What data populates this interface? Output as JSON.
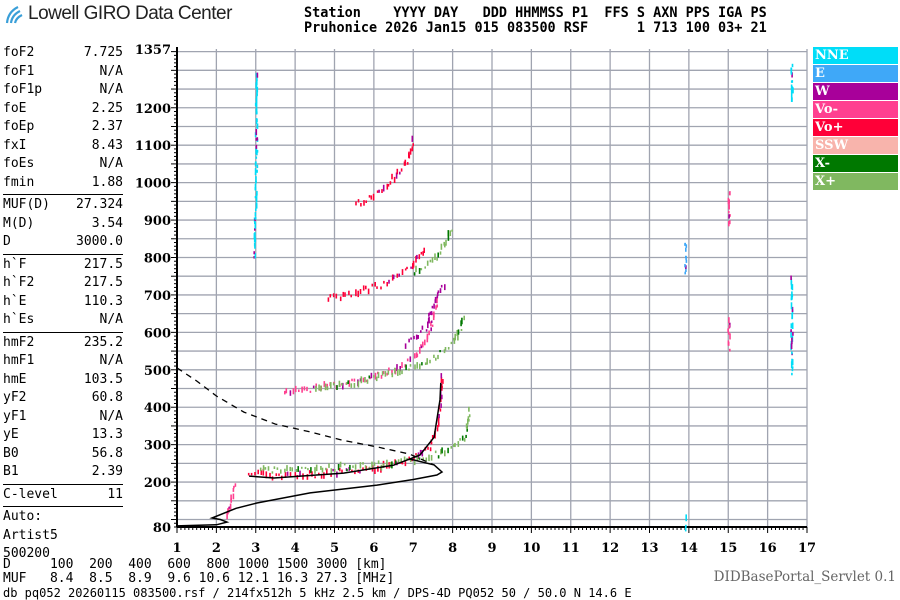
{
  "header": {
    "logo_text": "Lowell GIRO Data Center",
    "line1": "Station    YYYY DAY   DDD HHMMSS P1  FFS S AXN PPS IGA PS",
    "line2": "Pruhonice 2026 Jan15 015 083500 RSF      1 713 100 03+ 21"
  },
  "params": [
    [
      {
        "k": "foF2",
        "v": "7.725"
      },
      {
        "k": "foF1",
        "v": "N/A"
      },
      {
        "k": "foF1p",
        "v": "N/A"
      },
      {
        "k": "foE",
        "v": "2.25"
      },
      {
        "k": "foEp",
        "v": "2.37"
      },
      {
        "k": "fxI",
        "v": "8.43"
      },
      {
        "k": "foEs",
        "v": "N/A"
      },
      {
        "k": "fmin",
        "v": "1.88"
      }
    ],
    [
      {
        "k": "MUF(D)",
        "v": "27.324"
      },
      {
        "k": "M(D)",
        "v": "3.54"
      },
      {
        "k": "D",
        "v": "3000.0"
      }
    ],
    [
      {
        "k": "h`F",
        "v": "217.5"
      },
      {
        "k": "h`F2",
        "v": "217.5"
      },
      {
        "k": "h`E",
        "v": "110.3"
      },
      {
        "k": "h`Es",
        "v": "N/A"
      }
    ],
    [
      {
        "k": "hmF2",
        "v": "235.2"
      },
      {
        "k": "hmF1",
        "v": "N/A"
      },
      {
        "k": "hmE",
        "v": "103.5"
      },
      {
        "k": "yF2",
        "v": "60.8"
      },
      {
        "k": "yF1",
        "v": "N/A"
      },
      {
        "k": "yE",
        "v": "13.3"
      },
      {
        "k": "B0",
        "v": "56.8"
      },
      {
        "k": "B1",
        "v": "2.39"
      }
    ],
    [
      {
        "k": "C-level",
        "v": "11"
      }
    ]
  ],
  "autoscaling": [
    "Auto:",
    "Artist5",
    "500200"
  ],
  "footer": {
    "d_row": "D     100  200  400  600  800 1000 1500 3000 [km]",
    "muf_row": "MUF   8.4  8.5  8.9  9.6 10.6 12.1 16.3 27.3 [MHz]",
    "info": "db pq052 20260115 083500.rsf / 214fx512h 5 kHz 2.5 km / DPS-4D PQ052 50 / 50.0 N 14.6 E",
    "servlet": "DIDBasePortal_Servlet 0.1"
  },
  "legend": [
    {
      "label": "NNE",
      "color": "#00ddf8"
    },
    {
      "label": "E",
      "color": "#3fa8f8"
    },
    {
      "label": "W",
      "color": "#a8009a"
    },
    {
      "label": "Vo-",
      "color": "#ff4090"
    },
    {
      "label": "Vo+",
      "color": "#ff0038"
    },
    {
      "label": "SSW",
      "color": "#f8b4ac"
    },
    {
      "label": "X-",
      "color": "#007800"
    },
    {
      "label": "X+",
      "color": "#80b860"
    }
  ],
  "chart_data": {
    "type": "scatter",
    "xlabel": "",
    "ylabel": "",
    "xlim": [
      1,
      17
    ],
    "ylim": [
      80,
      1357
    ],
    "x_ticks": [
      1,
      2,
      3,
      4,
      5,
      6,
      7,
      8,
      9,
      10,
      11,
      12,
      13,
      14,
      15,
      16,
      17
    ],
    "y_ticks": [
      80,
      200,
      300,
      400,
      500,
      600,
      700,
      800,
      900,
      1000,
      1100,
      1200,
      1357
    ],
    "grid": true,
    "legend_placement": "right",
    "traces": [
      {
        "pol": "Vo+",
        "points": [
          [
            2.8,
            222
          ],
          [
            3.5,
            217
          ],
          [
            4.5,
            220
          ],
          [
            5.5,
            230
          ],
          [
            6.3,
            242
          ],
          [
            7.0,
            262
          ],
          [
            7.4,
            295
          ],
          [
            7.6,
            350
          ],
          [
            7.7,
            430
          ],
          [
            7.72,
            490
          ]
        ]
      },
      {
        "pol": "X+",
        "points": [
          [
            3.1,
            232
          ],
          [
            4.0,
            234
          ],
          [
            5.0,
            238
          ],
          [
            6.0,
            244
          ],
          [
            7.0,
            258
          ],
          [
            7.6,
            275
          ],
          [
            8.0,
            290
          ],
          [
            8.3,
            320
          ],
          [
            8.43,
            400
          ]
        ]
      },
      {
        "pol": "Vo-",
        "points": [
          [
            3.7,
            440
          ],
          [
            4.5,
            450
          ],
          [
            5.5,
            470
          ],
          [
            6.3,
            490
          ],
          [
            7.0,
            530
          ],
          [
            7.4,
            600
          ],
          [
            7.6,
            690
          ]
        ]
      },
      {
        "pol": "X+",
        "points": [
          [
            4.5,
            445
          ],
          [
            5.5,
            465
          ],
          [
            6.5,
            490
          ],
          [
            7.5,
            530
          ],
          [
            8.0,
            570
          ],
          [
            8.3,
            640
          ]
        ]
      },
      {
        "pol": "W",
        "points": [
          [
            6.8,
            570
          ],
          [
            7.3,
            610
          ],
          [
            7.6,
            700
          ],
          [
            7.8,
            730
          ]
        ]
      },
      {
        "pol": "Vo+",
        "points": [
          [
            4.8,
            690
          ],
          [
            5.5,
            705
          ],
          [
            6.3,
            730
          ],
          [
            6.9,
            770
          ],
          [
            7.3,
            830
          ]
        ]
      },
      {
        "pol": "X+",
        "points": [
          [
            7.0,
            760
          ],
          [
            7.6,
            800
          ],
          [
            8.0,
            880
          ]
        ]
      },
      {
        "pol": "Vo+",
        "points": [
          [
            5.5,
            940
          ],
          [
            6.2,
            980
          ],
          [
            6.8,
            1050
          ],
          [
            7.0,
            1120
          ]
        ]
      },
      {
        "pol": "NNE",
        "points": [
          [
            2.95,
            800
          ],
          [
            3.0,
            1000
          ],
          [
            3.0,
            1300
          ]
        ]
      },
      {
        "pol": "NNE",
        "points": [
          [
            16.6,
            490
          ],
          [
            16.6,
            760
          ]
        ]
      },
      {
        "pol": "NNE",
        "points": [
          [
            16.6,
            1220
          ],
          [
            16.6,
            1320
          ]
        ]
      },
      {
        "pol": "E",
        "points": [
          [
            13.9,
            760
          ],
          [
            13.9,
            850
          ]
        ]
      },
      {
        "pol": "NNE",
        "points": [
          [
            13.9,
            82
          ],
          [
            13.9,
            105
          ]
        ]
      },
      {
        "pol": "Vo-",
        "points": [
          [
            2.25,
            110
          ],
          [
            2.35,
            150
          ],
          [
            2.5,
            195
          ]
        ]
      },
      {
        "pol": "Vo-",
        "points": [
          [
            15.0,
            890
          ],
          [
            15.0,
            980
          ]
        ]
      },
      {
        "pol": "Vo-",
        "points": [
          [
            15.0,
            560
          ],
          [
            15.0,
            640
          ]
        ]
      }
    ],
    "virtual_height_trace": [
      [
        2.83,
        216
      ],
      [
        3.46,
        211
      ],
      [
        5.23,
        224
      ],
      [
        6.5,
        245
      ],
      [
        7.17,
        272
      ],
      [
        7.53,
        320
      ],
      [
        7.68,
        420
      ],
      [
        7.7,
        465
      ]
    ],
    "true_height_profile": [
      [
        1.0,
        83
      ],
      [
        2.0,
        86
      ],
      [
        2.27,
        93
      ],
      [
        2.1,
        100
      ],
      [
        1.89,
        104
      ],
      [
        2.5,
        130
      ],
      [
        3.03,
        144
      ],
      [
        4.38,
        171
      ],
      [
        6.08,
        192
      ],
      [
        7.0,
        207
      ],
      [
        7.6,
        219
      ],
      [
        7.73,
        227
      ],
      [
        7.53,
        246
      ],
      [
        6.9,
        262
      ]
    ],
    "topside_profile_dashed": [
      [
        1.0,
        505
      ],
      [
        1.5,
        470
      ],
      [
        2.0,
        430
      ],
      [
        2.7,
        387
      ],
      [
        3.5,
        355
      ],
      [
        4.38,
        334
      ],
      [
        5.2,
        312
      ],
      [
        6.08,
        294
      ],
      [
        6.9,
        275
      ],
      [
        7.53,
        246
      ]
    ]
  }
}
